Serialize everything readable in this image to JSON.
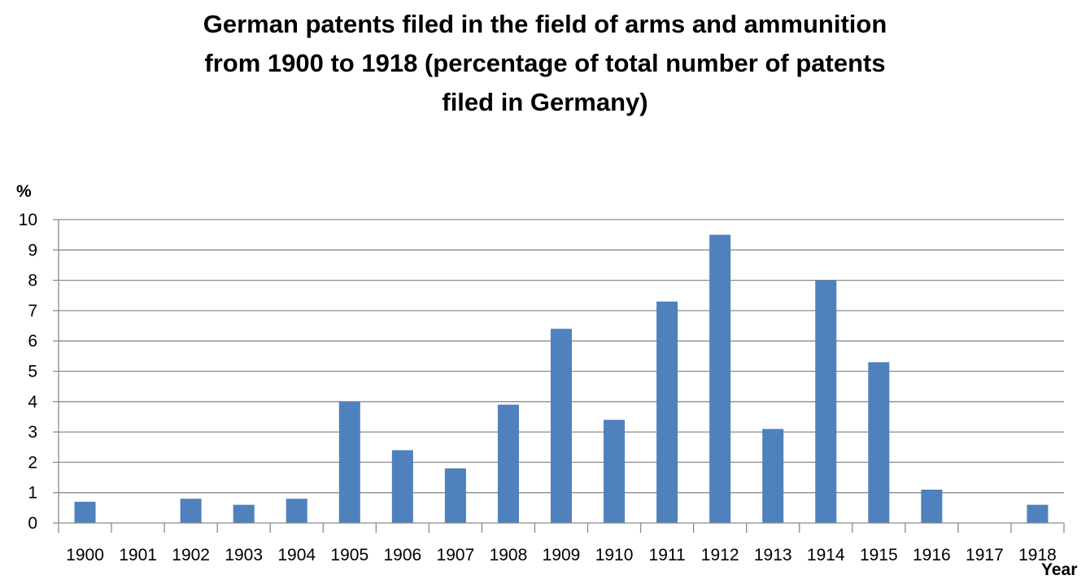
{
  "chart_data": {
    "type": "bar",
    "title": "German patents filed in the field of arms and ammunition\nfrom 1900 to 1918 (percentage of total number of patents\nfiled in Germany)",
    "xlabel": "Year",
    "ylabel": "%",
    "categories": [
      "1900",
      "1901",
      "1902",
      "1903",
      "1904",
      "1905",
      "1906",
      "1907",
      "1908",
      "1909",
      "1910",
      "1911",
      "1912",
      "1913",
      "1914",
      "1915",
      "1916",
      "1917",
      "1918"
    ],
    "values": [
      0.7,
      0,
      0.8,
      0.6,
      0.8,
      4.0,
      2.4,
      1.8,
      3.9,
      6.4,
      3.4,
      7.3,
      9.5,
      3.1,
      8.0,
      5.3,
      1.1,
      0,
      0.6
    ],
    "ylim": [
      0,
      10
    ],
    "yticks": [
      0,
      1,
      2,
      3,
      4,
      5,
      6,
      7,
      8,
      9,
      10
    ],
    "grid": true,
    "legend": "none",
    "bar_color": "#4f81bd"
  }
}
